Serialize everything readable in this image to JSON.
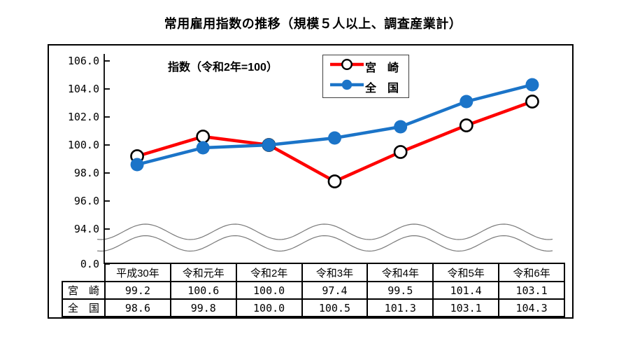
{
  "title": "常用雇用指数の推移（規模５人以上、調査産業計）",
  "chart_data": {
    "type": "line",
    "subtitle": "指数（令和2年=100）",
    "categories": [
      "平成30年",
      "令和元年",
      "令和2年",
      "令和3年",
      "令和4年",
      "令和5年",
      "令和6年"
    ],
    "series": [
      {
        "name": "宮　崎",
        "values": [
          99.2,
          100.6,
          100.0,
          97.4,
          99.5,
          101.4,
          103.1
        ],
        "color": "#fe0000",
        "marker": "open-circle"
      },
      {
        "name": "全　国",
        "values": [
          98.6,
          99.8,
          100.0,
          100.5,
          101.3,
          103.1,
          104.3
        ],
        "color": "#1b74c8",
        "marker": "filled-circle"
      }
    ],
    "y_ticks": [
      106.0,
      104.0,
      102.0,
      100.0,
      98.0,
      96.0,
      94.0
    ],
    "y_tick_labels": [
      "106.0",
      "104.0",
      "102.0",
      "100.0",
      "98.0",
      "96.0",
      "94.0"
    ],
    "baseline_label": "0.0",
    "axis_break": true,
    "ylim_visible": [
      93.5,
      106.5
    ],
    "grid": false,
    "legend_position": "top-inside"
  },
  "colors": {
    "miyazaki": "#fe0000",
    "national": "#1b74c8",
    "break_line": "#7a7a7a",
    "axis": "#000000"
  }
}
